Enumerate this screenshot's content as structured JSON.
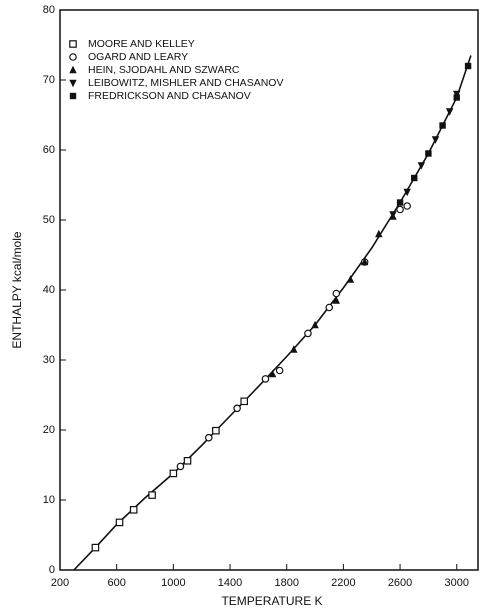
{
  "chart_data": {
    "type": "scatter",
    "xlabel": "TEMPERATURE K",
    "ylabel": "ENTHALPY kcal/mole",
    "xlim": [
      200,
      3150
    ],
    "ylim": [
      0,
      80
    ],
    "xticks": [
      200,
      600,
      1000,
      1400,
      1800,
      2200,
      2600,
      3000
    ],
    "yticks": [
      0,
      10,
      20,
      30,
      40,
      50,
      60,
      70,
      80
    ],
    "legend": "upper left",
    "curve": {
      "x": [
        298,
        450,
        600,
        800,
        1000,
        1200,
        1400,
        1600,
        1800,
        2000,
        2200,
        2400,
        2600,
        2800,
        3000,
        3100
      ],
      "y": [
        0,
        3.2,
        6.5,
        10.3,
        13.8,
        17.8,
        22,
        26.2,
        30.5,
        35,
        40.3,
        46,
        52.5,
        59.5,
        67.5,
        73.5
      ]
    },
    "series": [
      {
        "name": "MOORE AND KELLEY",
        "marker": "square",
        "color": "#111",
        "x": [
          450,
          620,
          720,
          850,
          1000,
          1100,
          1300,
          1500
        ],
        "y": [
          3.2,
          6.8,
          8.6,
          10.7,
          13.8,
          15.6,
          19.9,
          24.1
        ]
      },
      {
        "name": "OGARD AND LEARY",
        "marker": "circle",
        "color": "#111",
        "x": [
          1050,
          1250,
          1450,
          1650,
          1750,
          1950,
          2100,
          2150,
          2350,
          2600,
          2650
        ],
        "y": [
          14.8,
          18.9,
          23.1,
          27.3,
          28.5,
          33.8,
          37.5,
          39.5,
          44,
          51.5,
          52
        ]
      },
      {
        "name": "HEIN, SJODAHL AND SZWARC",
        "marker": "triangle",
        "color": "#111",
        "x": [
          1700,
          1850,
          2000,
          2150,
          2250,
          2350,
          2450,
          2550
        ],
        "y": [
          28,
          31.5,
          35,
          38.5,
          41.5,
          44,
          48,
          50.5
        ]
      },
      {
        "name": "LEIBOWITZ, MISHLER AND CHASANOV",
        "marker": "triangle-down",
        "color": "#111",
        "x": [
          2550,
          2650,
          2750,
          2850,
          2950,
          3000
        ],
        "y": [
          50.8,
          54,
          57.8,
          61.5,
          65.5,
          68
        ]
      },
      {
        "name": "FREDRICKSON AND CHASANOV",
        "marker": "filled-square",
        "color": "#111",
        "x": [
          2600,
          2700,
          2800,
          2900,
          3000,
          3080
        ],
        "y": [
          52.5,
          56,
          59.5,
          63.5,
          67.5,
          72
        ]
      }
    ]
  }
}
